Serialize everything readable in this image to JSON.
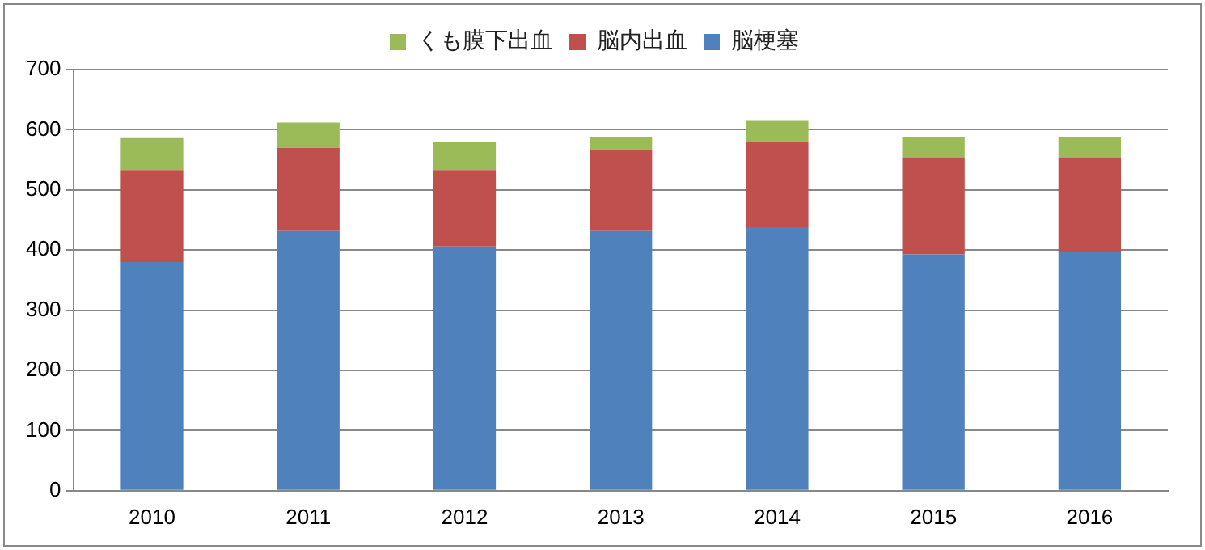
{
  "chart_data": {
    "type": "bar",
    "stacked": true,
    "categories": [
      "2010",
      "2011",
      "2012",
      "2013",
      "2014",
      "2015",
      "2016"
    ],
    "series": [
      {
        "name": "脳梗塞",
        "color": "#4f81bd",
        "values": [
          380,
          433,
          406,
          433,
          438,
          393,
          397
        ]
      },
      {
        "name": "脳内出血",
        "color": "#c0504d",
        "values": [
          153,
          137,
          127,
          133,
          142,
          161,
          157
        ]
      },
      {
        "name": "くも膜下出血",
        "color": "#9bbb59",
        "values": [
          53,
          42,
          47,
          22,
          36,
          34,
          34
        ]
      }
    ],
    "ylim": [
      0,
      700
    ],
    "yticks": [
      0,
      100,
      200,
      300,
      400,
      500,
      600,
      700
    ],
    "grid": "y",
    "legend": "top"
  }
}
